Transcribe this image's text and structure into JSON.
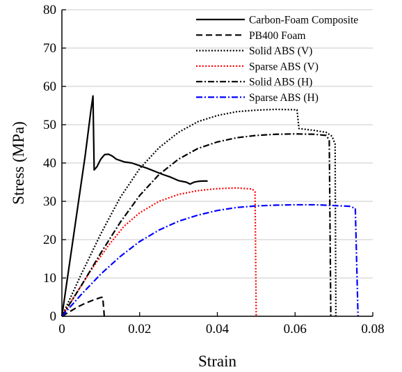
{
  "chart_data": {
    "type": "line",
    "title": "",
    "xlabel": "Strain",
    "ylabel": "Stress (MPa)",
    "xlim": [
      0,
      0.08
    ],
    "ylim": [
      0,
      80
    ],
    "xticks": [
      0,
      0.02,
      0.04,
      0.06,
      0.08
    ],
    "xtick_labels": [
      "0",
      "0.02",
      "0.04",
      "0.06",
      "0.08"
    ],
    "yticks": [
      0,
      10,
      20,
      30,
      40,
      50,
      60,
      70,
      80
    ],
    "ytick_labels": [
      "0",
      "10",
      "20",
      "30",
      "40",
      "50",
      "60",
      "70",
      "80"
    ],
    "grid": "horizontal",
    "legend_position": "top-right",
    "series": [
      {
        "name": "Carbon-Foam Composite",
        "color": "#000000",
        "dash": "solid",
        "points": [
          [
            0,
            0
          ],
          [
            0.002,
            14
          ],
          [
            0.004,
            28
          ],
          [
            0.006,
            42
          ],
          [
            0.0075,
            54
          ],
          [
            0.008,
            57.5
          ],
          [
            0.0083,
            38.2
          ],
          [
            0.009,
            39
          ],
          [
            0.01,
            41
          ],
          [
            0.011,
            42.2
          ],
          [
            0.012,
            42.3
          ],
          [
            0.013,
            41.8
          ],
          [
            0.014,
            41
          ],
          [
            0.016,
            40.3
          ],
          [
            0.018,
            40
          ],
          [
            0.02,
            39.3
          ],
          [
            0.022,
            38.6
          ],
          [
            0.024,
            37.8
          ],
          [
            0.026,
            37
          ],
          [
            0.028,
            36.3
          ],
          [
            0.03,
            35.4
          ],
          [
            0.032,
            35
          ],
          [
            0.033,
            34.5
          ],
          [
            0.034,
            35
          ],
          [
            0.035,
            35.2
          ],
          [
            0.036,
            35.3
          ],
          [
            0.0375,
            35.3
          ]
        ]
      },
      {
        "name": "PB400 Foam",
        "color": "#000000",
        "dash": "dashed",
        "points": [
          [
            0,
            0
          ],
          [
            0.002,
            1.2
          ],
          [
            0.004,
            2.4
          ],
          [
            0.006,
            3.4
          ],
          [
            0.008,
            4.2
          ],
          [
            0.01,
            4.9
          ],
          [
            0.0105,
            5
          ],
          [
            0.0108,
            1.5
          ],
          [
            0.0109,
            0
          ]
        ]
      },
      {
        "name": "Solid ABS (V)",
        "color": "#000000",
        "dash": "dotted",
        "points": [
          [
            0,
            0
          ],
          [
            0.005,
            11
          ],
          [
            0.01,
            21.5
          ],
          [
            0.015,
            31
          ],
          [
            0.02,
            38.5
          ],
          [
            0.025,
            44
          ],
          [
            0.03,
            48
          ],
          [
            0.035,
            50.8
          ],
          [
            0.04,
            52.4
          ],
          [
            0.045,
            53.4
          ],
          [
            0.05,
            53.8
          ],
          [
            0.055,
            54
          ],
          [
            0.0605,
            53.9
          ],
          [
            0.061,
            49
          ],
          [
            0.065,
            48.5
          ],
          [
            0.068,
            48
          ],
          [
            0.0695,
            47
          ],
          [
            0.0703,
            45
          ],
          [
            0.0705,
            0
          ]
        ]
      },
      {
        "name": "Sparse ABS (V)",
        "color": "#ff0000",
        "dash": "dotted",
        "points": [
          [
            0,
            0
          ],
          [
            0.004,
            6.5
          ],
          [
            0.008,
            12.8
          ],
          [
            0.012,
            18.5
          ],
          [
            0.016,
            23.5
          ],
          [
            0.02,
            27
          ],
          [
            0.025,
            30
          ],
          [
            0.03,
            31.8
          ],
          [
            0.035,
            32.8
          ],
          [
            0.04,
            33.3
          ],
          [
            0.045,
            33.5
          ],
          [
            0.049,
            33.2
          ],
          [
            0.0497,
            32.5
          ],
          [
            0.05,
            0
          ]
        ]
      },
      {
        "name": "Solid ABS (H)",
        "color": "#000000",
        "dash": "dashdot",
        "points": [
          [
            0,
            0
          ],
          [
            0.005,
            8
          ],
          [
            0.01,
            16.5
          ],
          [
            0.015,
            24.5
          ],
          [
            0.02,
            31.5
          ],
          [
            0.025,
            37
          ],
          [
            0.03,
            41
          ],
          [
            0.035,
            43.8
          ],
          [
            0.04,
            45.5
          ],
          [
            0.045,
            46.6
          ],
          [
            0.05,
            47.2
          ],
          [
            0.055,
            47.5
          ],
          [
            0.06,
            47.6
          ],
          [
            0.065,
            47.5
          ],
          [
            0.068,
            47.2
          ],
          [
            0.0688,
            46
          ],
          [
            0.0692,
            0
          ]
        ]
      },
      {
        "name": "Sparse ABS (H)",
        "color": "#0000ff",
        "dash": "dashdot",
        "points": [
          [
            0,
            0
          ],
          [
            0.005,
            5.7
          ],
          [
            0.01,
            11
          ],
          [
            0.015,
            15.6
          ],
          [
            0.02,
            19.5
          ],
          [
            0.025,
            22.5
          ],
          [
            0.03,
            24.8
          ],
          [
            0.035,
            26.4
          ],
          [
            0.04,
            27.6
          ],
          [
            0.045,
            28.4
          ],
          [
            0.05,
            28.8
          ],
          [
            0.055,
            29
          ],
          [
            0.06,
            29.1
          ],
          [
            0.065,
            29.1
          ],
          [
            0.07,
            28.9
          ],
          [
            0.074,
            28.7
          ],
          [
            0.0755,
            28.2
          ],
          [
            0.0762,
            0
          ]
        ]
      }
    ]
  }
}
